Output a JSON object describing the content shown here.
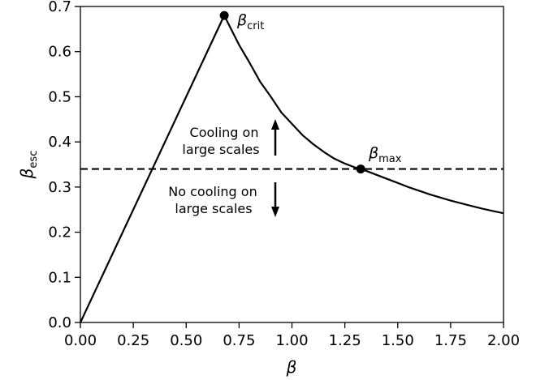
{
  "chart_data": {
    "type": "line",
    "xlabel": "β",
    "ylabel": "β",
    "ylabel_sub": "esc",
    "xlim": [
      0,
      2
    ],
    "ylim": [
      0,
      0.7
    ],
    "x_ticks": [
      0,
      0.25,
      0.5,
      0.75,
      1.0,
      1.25,
      1.5,
      1.75,
      2.0
    ],
    "x_tick_labels": [
      "0.00",
      "0.25",
      "0.50",
      "0.75",
      "1.00",
      "1.25",
      "1.50",
      "1.75",
      "2.00"
    ],
    "y_ticks": [
      0,
      0.1,
      0.2,
      0.3,
      0.4,
      0.5,
      0.6,
      0.7
    ],
    "y_tick_labels": [
      "0.0",
      "0.1",
      "0.2",
      "0.3",
      "0.4",
      "0.5",
      "0.6",
      "0.7"
    ],
    "grid": false,
    "series": [
      {
        "x": [
          0,
          0.68,
          0.75,
          0.8,
          0.85,
          0.9,
          0.95,
          1.0,
          1.05,
          1.1,
          1.15,
          1.2,
          1.25,
          1.3,
          1.325,
          1.35,
          1.4,
          1.45,
          1.5,
          1.55,
          1.6,
          1.65,
          1.7,
          1.75,
          1.8,
          1.85,
          1.9,
          1.95,
          2.0
        ],
        "y": [
          0,
          0.68,
          0.615,
          0.575,
          0.533,
          0.5,
          0.465,
          0.44,
          0.415,
          0.395,
          0.378,
          0.363,
          0.352,
          0.343,
          0.34,
          0.336,
          0.327,
          0.318,
          0.309,
          0.3,
          0.292,
          0.284,
          0.277,
          0.27,
          0.264,
          0.258,
          0.252,
          0.247,
          0.242
        ]
      }
    ],
    "hline": {
      "y": 0.34,
      "style": "dashed"
    },
    "points": [
      {
        "x": 0.68,
        "y": 0.68,
        "label": "β",
        "sub": "crit"
      },
      {
        "x": 1.325,
        "y": 0.34,
        "label": "β",
        "sub": "max"
      }
    ],
    "annotations": [
      {
        "lines": [
          "Cooling on",
          "large scales"
        ],
        "arrow": "up"
      },
      {
        "lines": [
          "No cooling on",
          "large scales"
        ],
        "arrow": "down"
      }
    ]
  }
}
